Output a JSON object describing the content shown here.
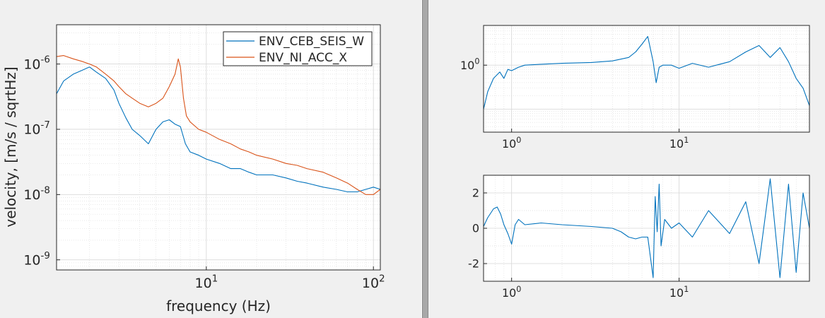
{
  "colors": {
    "series1": "#0072BD",
    "series2": "#D95319",
    "axis": "#262626",
    "grid": "#d9d9d9",
    "panel": "#f0f0f0",
    "divider": "#9a9a9a"
  },
  "chart_data": [
    {
      "type": "line",
      "xscale": "log",
      "yscale": "log",
      "xlim": [
        1.27,
        110
      ],
      "ylim": [
        7e-10,
        4e-06
      ],
      "xlabel": "frequency (Hz)",
      "ylabel": "velocity, [m/s / sqrtHz]",
      "grid": true,
      "legend": "top-right",
      "xticks": [
        {
          "v": 10,
          "label": "10",
          "exp": "1"
        },
        {
          "v": 100,
          "label": "10",
          "exp": "2"
        }
      ],
      "yticks": [
        {
          "v": 1e-09,
          "label": "10",
          "exp": "-9"
        },
        {
          "v": 1e-08,
          "label": "10",
          "exp": "-8"
        },
        {
          "v": 1e-07,
          "label": "10",
          "exp": "-7"
        },
        {
          "v": 1e-06,
          "label": "10",
          "exp": "-6"
        }
      ],
      "series": [
        {
          "name": "ENV_CEB_SEIS_W",
          "x": [
            1.27,
            1.4,
            1.6,
            1.8,
            2.0,
            2.2,
            2.5,
            2.8,
            3.0,
            3.3,
            3.6,
            4.0,
            4.5,
            5.0,
            5.5,
            6.0,
            6.5,
            7.0,
            7.5,
            8.0,
            9.0,
            10,
            12,
            14,
            16,
            18,
            20,
            25,
            30,
            35,
            40,
            50,
            60,
            70,
            80,
            90,
            100,
            110
          ],
          "y": [
            3.5e-07,
            5.5e-07,
            7e-07,
            8e-07,
            9e-07,
            7.5e-07,
            6e-07,
            4e-07,
            2.5e-07,
            1.5e-07,
            1e-07,
            8e-08,
            6e-08,
            1e-07,
            1.3e-07,
            1.4e-07,
            1.2e-07,
            1.1e-07,
            6e-08,
            4.5e-08,
            4e-08,
            3.5e-08,
            3e-08,
            2.5e-08,
            2.5e-08,
            2.2e-08,
            2e-08,
            2e-08,
            1.8e-08,
            1.6e-08,
            1.5e-08,
            1.3e-08,
            1.2e-08,
            1.1e-08,
            1.1e-08,
            1.2e-08,
            1.3e-08,
            1.2e-08
          ]
        },
        {
          "name": "ENV_NI_ACC_X",
          "x": [
            1.27,
            1.4,
            1.6,
            1.8,
            2.0,
            2.2,
            2.5,
            2.8,
            3.0,
            3.3,
            3.6,
            4.0,
            4.5,
            5.0,
            5.5,
            6.0,
            6.5,
            6.8,
            7.0,
            7.3,
            7.6,
            8.0,
            9.0,
            10,
            12,
            14,
            16,
            18,
            20,
            25,
            30,
            35,
            40,
            50,
            60,
            70,
            80,
            90,
            100,
            110
          ],
          "y": [
            1.3e-06,
            1.35e-06,
            1.2e-06,
            1.1e-06,
            1e-06,
            9e-07,
            7e-07,
            5.5e-07,
            4.5e-07,
            3.5e-07,
            3e-07,
            2.5e-07,
            2.2e-07,
            2.5e-07,
            3e-07,
            4.5e-07,
            7e-07,
            1.2e-06,
            9e-07,
            3e-07,
            1.6e-07,
            1.3e-07,
            1e-07,
            9e-08,
            7e-08,
            6e-08,
            5e-08,
            4.5e-08,
            4e-08,
            3.5e-08,
            3e-08,
            2.8e-08,
            2.5e-08,
            2.2e-08,
            1.8e-08,
            1.5e-08,
            1.2e-08,
            1e-08,
            1e-08,
            1.2e-08
          ]
        }
      ]
    },
    {
      "type": "line",
      "xscale": "log",
      "yscale": "log",
      "xlim": [
        0.68,
        60
      ],
      "ylim": [
        0.03,
        8
      ],
      "xlabel": "",
      "ylabel": "",
      "grid": true,
      "xticks": [
        {
          "v": 1,
          "label": "10",
          "exp": "0"
        },
        {
          "v": 10,
          "label": "10",
          "exp": "1"
        }
      ],
      "yticks": [
        {
          "v": 1,
          "label": "10",
          "exp": "0"
        }
      ],
      "series": [
        {
          "x": [
            0.68,
            0.72,
            0.78,
            0.85,
            0.9,
            0.95,
            1.0,
            1.1,
            1.2,
            1.5,
            2.0,
            3.0,
            4.0,
            5.0,
            5.5,
            6.0,
            6.5,
            7.0,
            7.3,
            7.6,
            8.0,
            9.0,
            10,
            12,
            15,
            20,
            25,
            30,
            35,
            40,
            45,
            50,
            55,
            60
          ],
          "y": [
            0.1,
            0.25,
            0.5,
            0.7,
            0.5,
            0.8,
            0.75,
            0.9,
            1.0,
            1.05,
            1.1,
            1.15,
            1.25,
            1.5,
            2.0,
            3.0,
            4.5,
            1.2,
            0.4,
            0.9,
            1.0,
            1.0,
            0.85,
            1.1,
            0.9,
            1.2,
            2.0,
            2.8,
            1.5,
            2.5,
            1.2,
            0.5,
            0.3,
            0.12
          ]
        }
      ]
    },
    {
      "type": "line",
      "xscale": "log",
      "yscale": "linear",
      "xlim": [
        0.68,
        60
      ],
      "ylim": [
        -3,
        3
      ],
      "xlabel": "",
      "ylabel": "",
      "grid": true,
      "xticks": [
        {
          "v": 1,
          "label": "10",
          "exp": "0"
        },
        {
          "v": 10,
          "label": "10",
          "exp": "1"
        }
      ],
      "yticks": [
        {
          "v": -2,
          "label": "-2",
          "exp": ""
        },
        {
          "v": 0,
          "label": "0",
          "exp": ""
        },
        {
          "v": 2,
          "label": "2",
          "exp": ""
        }
      ],
      "series": [
        {
          "x": [
            0.68,
            0.72,
            0.78,
            0.82,
            0.86,
            0.9,
            0.95,
            1.0,
            1.05,
            1.1,
            1.2,
            1.5,
            2.0,
            3.0,
            4.0,
            4.5,
            5.0,
            5.5,
            6.0,
            6.5,
            7.0,
            7.2,
            7.4,
            7.6,
            7.8,
            8.2,
            9.0,
            10,
            12,
            15,
            20,
            25,
            30,
            35,
            40,
            45,
            50,
            55,
            60
          ],
          "y": [
            0.1,
            0.6,
            1.1,
            1.2,
            0.8,
            0.2,
            -0.3,
            -0.9,
            0.2,
            0.5,
            0.2,
            0.3,
            0.2,
            0.1,
            0.0,
            -0.2,
            -0.5,
            -0.6,
            -0.5,
            -0.5,
            -2.8,
            1.8,
            -0.2,
            2.5,
            -1.0,
            0.5,
            0.0,
            0.3,
            -0.5,
            1.0,
            -0.3,
            1.5,
            -2.0,
            2.8,
            -2.8,
            2.5,
            -2.5,
            2.0,
            0.0
          ]
        }
      ]
    }
  ]
}
